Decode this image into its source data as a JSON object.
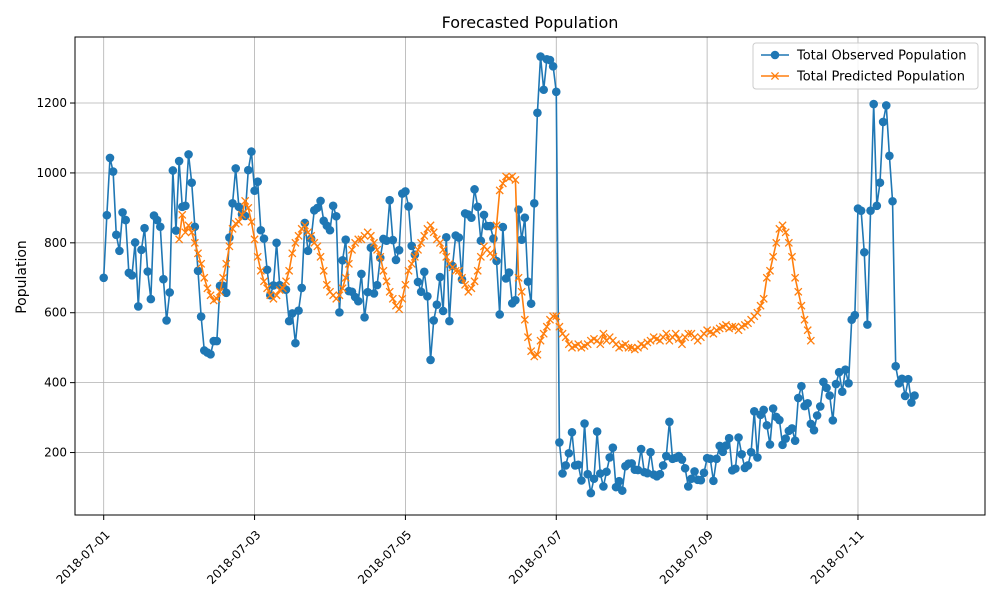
{
  "chart_data": {
    "type": "line",
    "title": "Forecasted Population",
    "xlabel": "",
    "ylabel": "Population",
    "x_range": [
      "2018-06-30T14:52",
      "2018-07-12T16:25"
    ],
    "ylim": [
      21.3,
      1388.9
    ],
    "x_ticks": [
      "2018-07-01",
      "2018-07-03",
      "2018-07-05",
      "2018-07-07",
      "2018-07-09",
      "2018-07-11"
    ],
    "y_ticks": [
      200,
      400,
      600,
      800,
      1000,
      1200
    ],
    "grid": true,
    "legend_position": "top-right",
    "start": "2018-07-01T00:00",
    "interval_hours": 1,
    "series": [
      {
        "name": "Total Observed Population",
        "color": "#1f77b4",
        "marker": "circle",
        "values": [
          700,
          879,
          1043,
          1004,
          823,
          777,
          887,
          865,
          714,
          707,
          801,
          618,
          780,
          842,
          718,
          639,
          878,
          865,
          846,
          696,
          578,
          658,
          1007,
          835,
          1034,
          903,
          906,
          1053,
          972,
          846,
          720,
          589,
          492,
          486,
          481,
          519,
          519,
          677,
          677,
          657,
          815,
          913,
          1013,
          903,
          882,
          877,
          1008,
          1061,
          949,
          975,
          836,
          812,
          723,
          650,
          678,
          800,
          679,
          673,
          666,
          576,
          598,
          513,
          606,
          671,
          857,
          777,
          812,
          893,
          900,
          920,
          863,
          849,
          836,
          906,
          876,
          601,
          750,
          809,
          662,
          660,
          645,
          633,
          711,
          587,
          659,
          786,
          655,
          679,
          757,
          811,
          806,
          922,
          808,
          751,
          779,
          941,
          947,
          904,
          791,
          766,
          688,
          660,
          717,
          647,
          465,
          578,
          623,
          702,
          605,
          816,
          576,
          734,
          821,
          815,
          695,
          884,
          881,
          872,
          953,
          903,
          806,
          880,
          848,
          848,
          812,
          748,
          595,
          845,
          698,
          715,
          627,
          636,
          895,
          809,
          872,
          689,
          626,
          913,
          1172,
          1333,
          1238,
          1325,
          1323,
          1305,
          1232,
          229,
          140,
          163,
          198,
          258,
          163,
          165,
          120,
          283,
          138,
          84,
          125,
          260,
          140,
          103,
          145,
          186,
          214,
          101,
          118,
          91,
          161,
          168,
          169,
          151,
          150,
          210,
          144,
          141,
          201,
          137,
          132,
          138,
          163,
          190,
          288,
          182,
          185,
          190,
          180,
          155,
          103,
          125,
          146,
          122,
          121,
          142,
          184,
          182,
          119,
          182,
          219,
          202,
          220,
          241,
          149,
          154,
          243,
          195,
          156,
          163,
          201,
          318,
          186,
          308,
          322,
          278,
          223,
          326,
          302,
          293,
          222,
          240,
          262,
          269,
          234,
          356,
          390,
          333,
          341,
          282,
          264,
          306,
          332,
          402,
          385,
          363,
          292,
          396,
          430,
          374,
          437,
          398,
          580,
          593,
          898,
          892,
          773,
          566,
          892,
          1197,
          906,
          972,
          1146,
          1193,
          1049,
          919,
          447,
          398,
          411,
          362,
          410,
          343,
          363
        ]
      },
      {
        "name": "Total Predicted Population",
        "color": "#ff7f0e",
        "marker": "x",
        "values": [
          null,
          null,
          null,
          null,
          null,
          null,
          null,
          null,
          null,
          null,
          null,
          null,
          null,
          null,
          null,
          null,
          null,
          null,
          null,
          null,
          null,
          null,
          null,
          null,
          810,
          880,
          830,
          850,
          830,
          800,
          770,
          740,
          700,
          670,
          650,
          635,
          640,
          660,
          700,
          740,
          790,
          840,
          855,
          860,
          880,
          920,
          900,
          860,
          810,
          760,
          720,
          690,
          670,
          650,
          640,
          650,
          665,
          670,
          690,
          720,
          770,
          800,
          820,
          840,
          850,
          830,
          820,
          800,
          790,
          760,
          720,
          680,
          660,
          650,
          640,
          650,
          670,
          700,
          740,
          780,
          800,
          810,
          810,
          820,
          830,
          820,
          800,
          780,
          760,
          720,
          690,
          660,
          640,
          620,
          610,
          640,
          680,
          720,
          740,
          760,
          780,
          800,
          820,
          840,
          850,
          830,
          810,
          800,
          780,
          760,
          740,
          730,
          720,
          720,
          700,
          680,
          660,
          670,
          690,
          720,
          760,
          790,
          780,
          770,
          760,
          850,
          950,
          970,
          990,
          985,
          990,
          980,
          700,
          660,
          580,
          530,
          490,
          475,
          480,
          520,
          540,
          560,
          580,
          590,
          590,
          560,
          540,
          530,
          510,
          500,
          505,
          510,
          500,
          505,
          510,
          520,
          525,
          520,
          510,
          540,
          520,
          530,
          520,
          510,
          500,
          505,
          510,
          500,
          500,
          495,
          500,
          510,
          505,
          515,
          520,
          530,
          525,
          520,
          530,
          540,
          520,
          530,
          540,
          525,
          510,
          530,
          540,
          540,
          530,
          520,
          530,
          540,
          550,
          545,
          540,
          550,
          555,
          560,
          565,
          555,
          560,
          560,
          550,
          560,
          565,
          570,
          580,
          590,
          600,
          620,
          640,
          700,
          720,
          760,
          800,
          840,
          850,
          830,
          800,
          760,
          700,
          660,
          620,
          580,
          550,
          520
        ]
      }
    ]
  }
}
